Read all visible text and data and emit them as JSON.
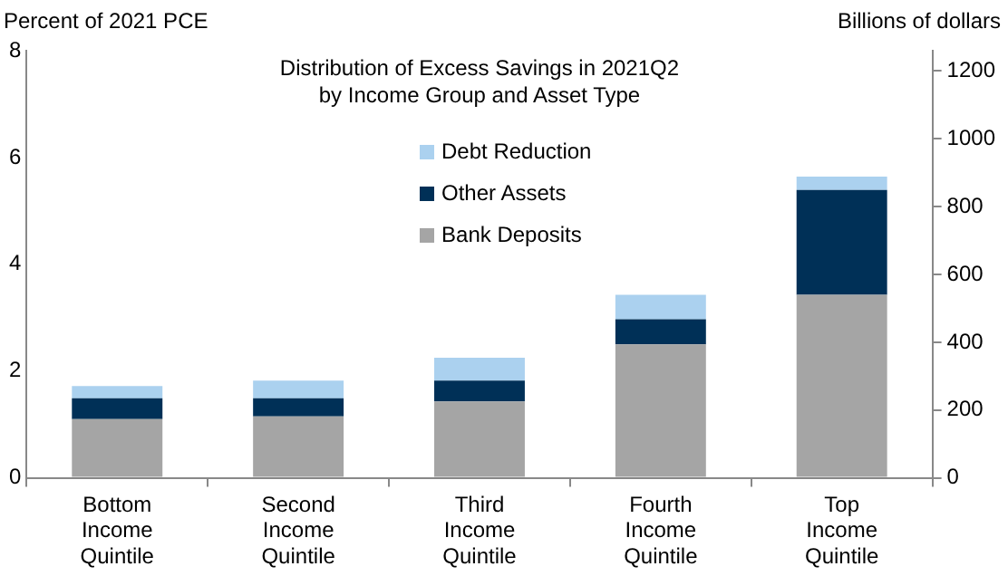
{
  "chart_data": {
    "type": "bar",
    "title": "Distribution of Excess Savings in 2021Q2\nby Income Group and Asset Type",
    "ylabel": "Percent of 2021 PCE",
    "y2label": "Billions of dollars",
    "categories": [
      "Bottom Income Quintile",
      "Second Income Quintile",
      "Third Income Quintile",
      "Fourth Income Quintile",
      "Top Income Quintile"
    ],
    "stacked": true,
    "series": [
      {
        "name": "Bank Deposits",
        "color": "#a5a5a5",
        "values": [
          1.1,
          1.15,
          1.43,
          2.5,
          3.43
        ]
      },
      {
        "name": "Other Assets",
        "color": "#003057",
        "values": [
          0.39,
          0.34,
          0.39,
          0.47,
          1.96
        ]
      },
      {
        "name": "Debt Reduction",
        "color": "#abd1ef",
        "values": [
          0.23,
          0.33,
          0.43,
          0.46,
          0.25
        ]
      }
    ],
    "ylim": [
      0,
      8
    ],
    "yticks": [
      0,
      2,
      4,
      6,
      8
    ],
    "y2lim": [
      0,
      1260
    ],
    "y2ticks": [
      0,
      200,
      400,
      600,
      800,
      1000,
      1200
    ],
    "grid": false,
    "legend": "top center"
  }
}
